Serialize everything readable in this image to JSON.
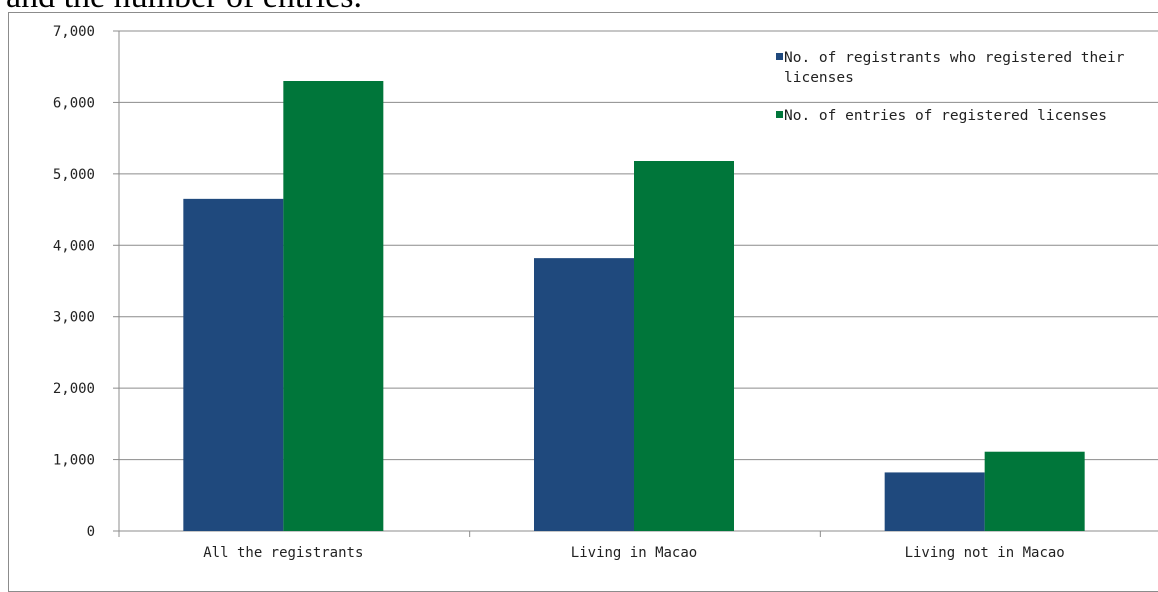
{
  "caption": "and the number of entries.",
  "chart_data": {
    "type": "bar",
    "categories": [
      "All the registrants",
      "Living in Macao",
      "Living not in Macao"
    ],
    "series": [
      {
        "name": "No. of registrants who registered their licenses",
        "values": [
          4650,
          3820,
          820
        ],
        "color": "#1f497d"
      },
      {
        "name": "No. of entries of registered licenses",
        "values": [
          6300,
          5180,
          1110
        ],
        "color": "#00763a"
      }
    ],
    "ylim": [
      0,
      7000
    ],
    "yticks": [
      0,
      1000,
      2000,
      3000,
      4000,
      5000,
      6000,
      7000
    ],
    "ytick_labels": [
      "0",
      "1,000",
      "2,000",
      "3,000",
      "4,000",
      "5,000",
      "6,000",
      "7,000"
    ],
    "grid": true,
    "legend_position": "top-right",
    "legend_lines": [
      [
        "No. of registrants who registered their",
        "licenses"
      ],
      [
        "No. of entries of registered licenses"
      ]
    ]
  }
}
